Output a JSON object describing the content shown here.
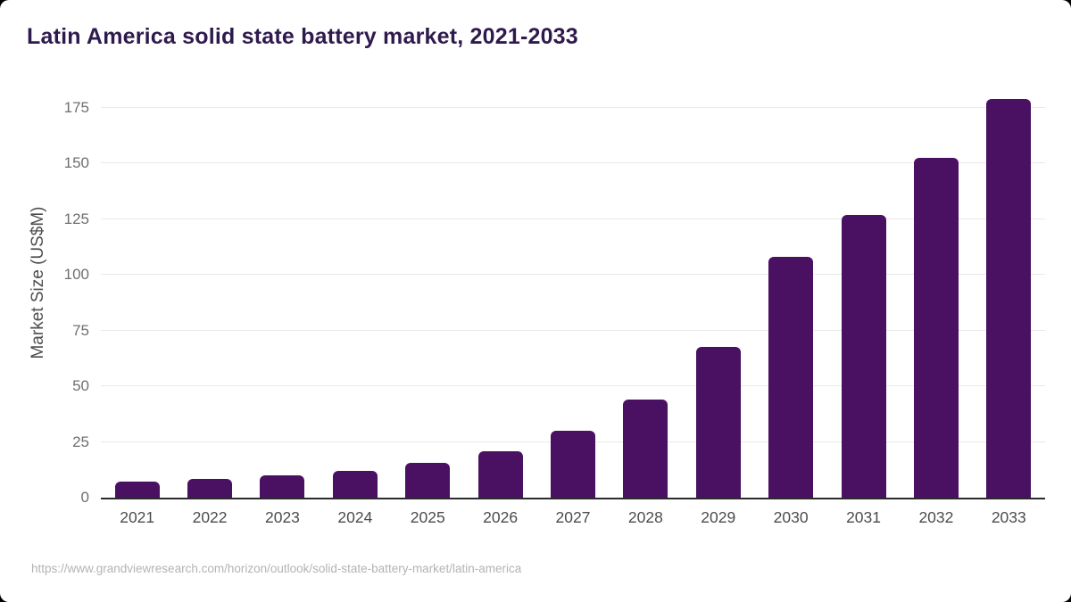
{
  "header": {
    "title": "Latin America solid state battery market, 2021-2033"
  },
  "chart_data": {
    "type": "bar",
    "title": "Latin America solid state battery market, 2021-2033",
    "categories": [
      "2021",
      "2022",
      "2023",
      "2024",
      "2025",
      "2026",
      "2027",
      "2028",
      "2029",
      "2030",
      "2031",
      "2032",
      "2033"
    ],
    "values": [
      7.4,
      8.4,
      10.0,
      12.2,
      15.8,
      20.9,
      30.0,
      44.0,
      67.5,
      108.0,
      127.0,
      152.5,
      178.8
    ],
    "xlabel": "",
    "ylabel": "Market Size (US$M)",
    "yticks": [
      0,
      25,
      50,
      75,
      100,
      125,
      150,
      175
    ],
    "ylim": [
      0,
      183
    ],
    "grid": true,
    "legend": "none",
    "bar_color": "#4a1061"
  },
  "footer": {
    "source_url": "https://www.grandviewresearch.com/horizon/outlook/solid-state-battery-market/latin-america"
  },
  "colors": {
    "title": "#2f1a4d",
    "bar": "#4a1061",
    "gridline": "#e9e9eb",
    "axis_line": "#2b2b2b",
    "y_tick_text": "#6f6f6f",
    "x_tick_text": "#4c4c4c",
    "source_text": "#b3b3b3",
    "background": "#ffffff"
  }
}
